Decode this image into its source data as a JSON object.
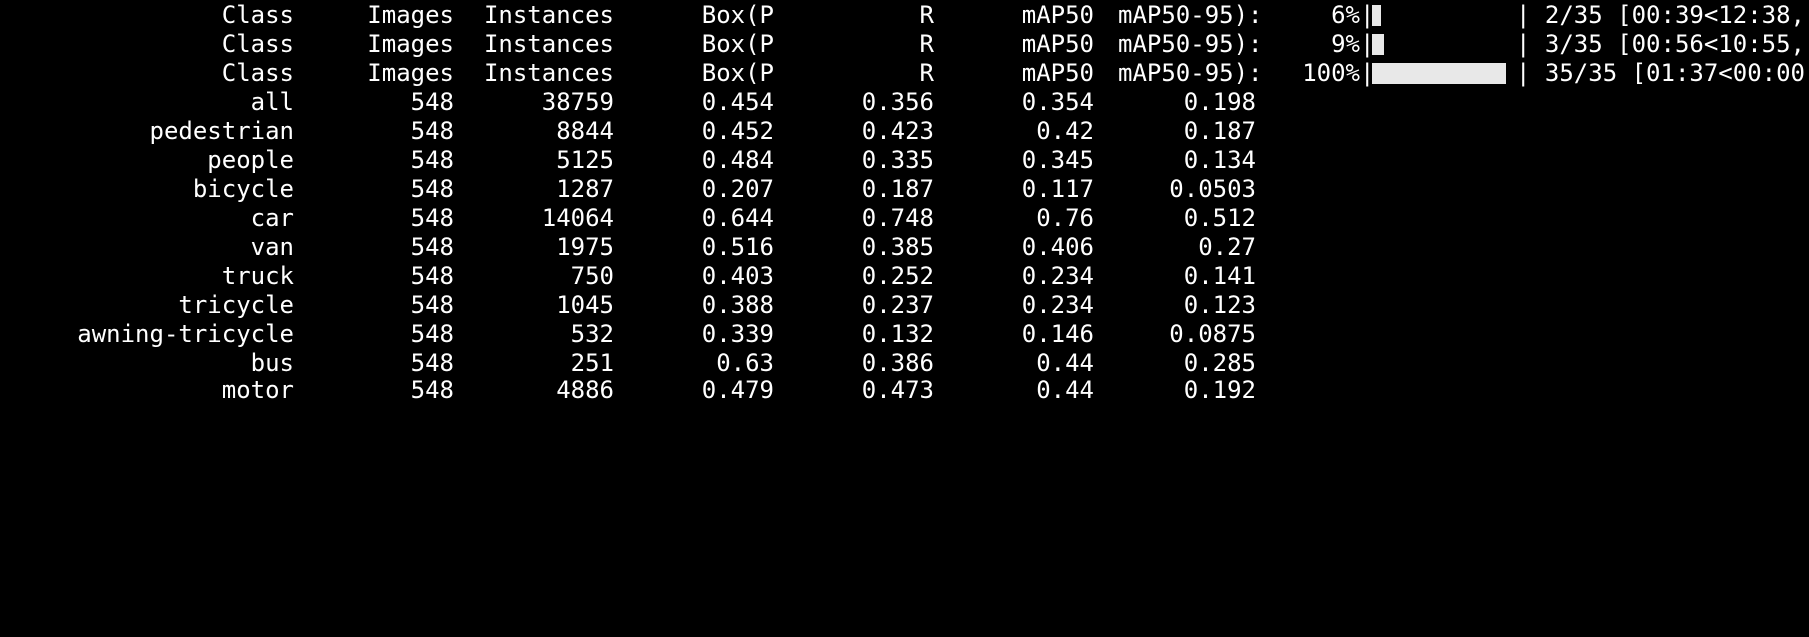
{
  "header_label": {
    "class": "Class",
    "images": "Images",
    "instances": "Instances",
    "box_p": "Box(P",
    "r": "R",
    "map50": "mAP50",
    "map50_95": "mAP50-95):"
  },
  "progress_lines": [
    {
      "percent": "6%",
      "fill_fraction": 0.06,
      "pipe": "|",
      "status": "| 2/35 [00:39<12:38,"
    },
    {
      "percent": "9%",
      "fill_fraction": 0.09,
      "pipe": "|",
      "status": "| 3/35 [00:56<10:55,"
    },
    {
      "percent": "100%",
      "fill_fraction": 1.0,
      "pipe": "|",
      "status": "| 35/35 [01:37<00:00,"
    }
  ],
  "results": [
    {
      "class": "all",
      "images": "548",
      "instances": "38759",
      "box_p": "0.454",
      "r": "0.356",
      "map50": "0.354",
      "map50_95": "0.198"
    },
    {
      "class": "pedestrian",
      "images": "548",
      "instances": "8844",
      "box_p": "0.452",
      "r": "0.423",
      "map50": "0.42",
      "map50_95": "0.187"
    },
    {
      "class": "people",
      "images": "548",
      "instances": "5125",
      "box_p": "0.484",
      "r": "0.335",
      "map50": "0.345",
      "map50_95": "0.134"
    },
    {
      "class": "bicycle",
      "images": "548",
      "instances": "1287",
      "box_p": "0.207",
      "r": "0.187",
      "map50": "0.117",
      "map50_95": "0.0503"
    },
    {
      "class": "car",
      "images": "548",
      "instances": "14064",
      "box_p": "0.644",
      "r": "0.748",
      "map50": "0.76",
      "map50_95": "0.512"
    },
    {
      "class": "van",
      "images": "548",
      "instances": "1975",
      "box_p": "0.516",
      "r": "0.385",
      "map50": "0.406",
      "map50_95": "0.27"
    },
    {
      "class": "truck",
      "images": "548",
      "instances": "750",
      "box_p": "0.403",
      "r": "0.252",
      "map50": "0.234",
      "map50_95": "0.141"
    },
    {
      "class": "tricycle",
      "images": "548",
      "instances": "1045",
      "box_p": "0.388",
      "r": "0.237",
      "map50": "0.234",
      "map50_95": "0.123"
    },
    {
      "class": "awning-tricycle",
      "images": "548",
      "instances": "532",
      "box_p": "0.339",
      "r": "0.132",
      "map50": "0.146",
      "map50_95": "0.0875"
    },
    {
      "class": "bus",
      "images": "548",
      "instances": "251",
      "box_p": "0.63",
      "r": "0.386",
      "map50": "0.44",
      "map50_95": "0.285"
    },
    {
      "class": "motor",
      "images": "548",
      "instances": "4886",
      "box_p": "0.479",
      "r": "0.473",
      "map50": "0.44",
      "map50_95": "0.192"
    }
  ],
  "colors": {
    "background": "#000000",
    "text": "#ffffff",
    "bar_fill": "#e8e8e8"
  }
}
